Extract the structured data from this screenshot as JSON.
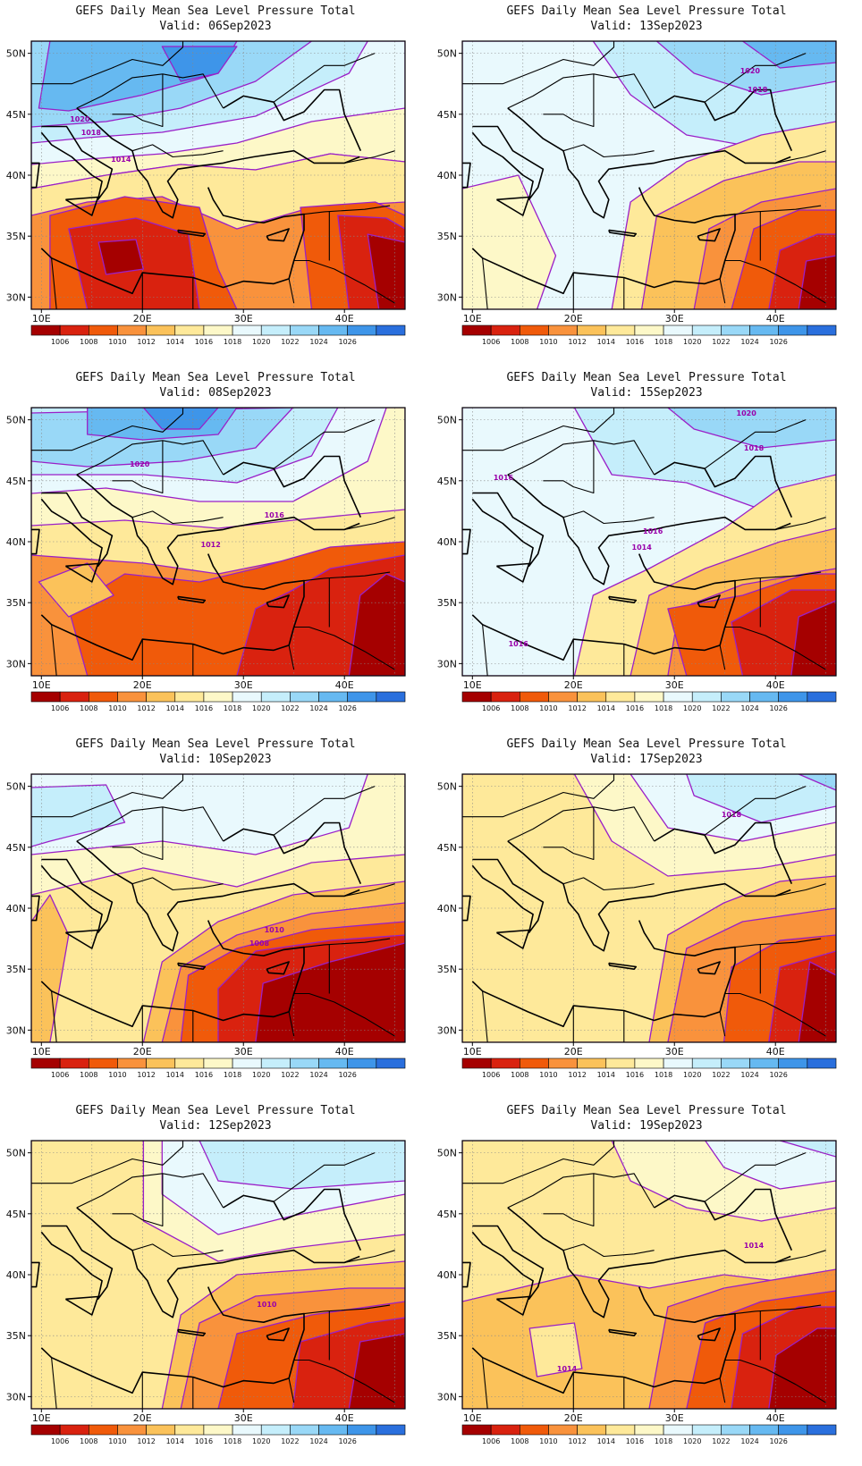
{
  "figure": {
    "title": "GEFS Daily Mean Sea Level Pressure Total",
    "valid_prefix": "Valid:",
    "lat_labels": [
      "50N",
      "45N",
      "40N",
      "35N",
      "30N"
    ],
    "lon_labels": [
      "10E",
      "20E",
      "30E",
      "40E"
    ],
    "colorbar": {
      "labels": [
        "1006",
        "1008",
        "1010",
        "1012",
        "1014",
        "1016",
        "1018",
        "1020",
        "1022",
        "1024",
        "1026"
      ],
      "colors": [
        "#a50000",
        "#d9220f",
        "#f05a0a",
        "#f9923c",
        "#fbc25a",
        "#fee99a",
        "#fdf8c8",
        "#e9f9fd",
        "#c5eefb",
        "#99d8f7",
        "#66b9f1",
        "#3e95e9",
        "#2a6fdd"
      ]
    },
    "colors": {
      "contour": "#9a1fc8",
      "coast": "#000000",
      "grid": "#888888"
    }
  },
  "panels": [
    {
      "valid": "06Sep2023",
      "contour_labels": [
        "1020",
        "1018",
        "1014"
      ]
    },
    {
      "valid": "13Sep2023",
      "contour_labels": [
        "1020",
        "1018"
      ]
    },
    {
      "valid": "08Sep2023",
      "contour_labels": [
        "1020",
        "1016",
        "1012"
      ]
    },
    {
      "valid": "15Sep2023",
      "contour_labels": [
        "1020",
        "1018",
        "1016",
        "1016",
        "1014",
        "1016"
      ]
    },
    {
      "valid": "10Sep2023",
      "contour_labels": [
        "1010",
        "1008"
      ]
    },
    {
      "valid": "17Sep2023",
      "contour_labels": [
        "1018"
      ]
    },
    {
      "valid": "12Sep2023",
      "contour_labels": [
        "1010"
      ]
    },
    {
      "valid": "19Sep2023",
      "contour_labels": [
        "1014",
        "1014"
      ]
    }
  ]
}
